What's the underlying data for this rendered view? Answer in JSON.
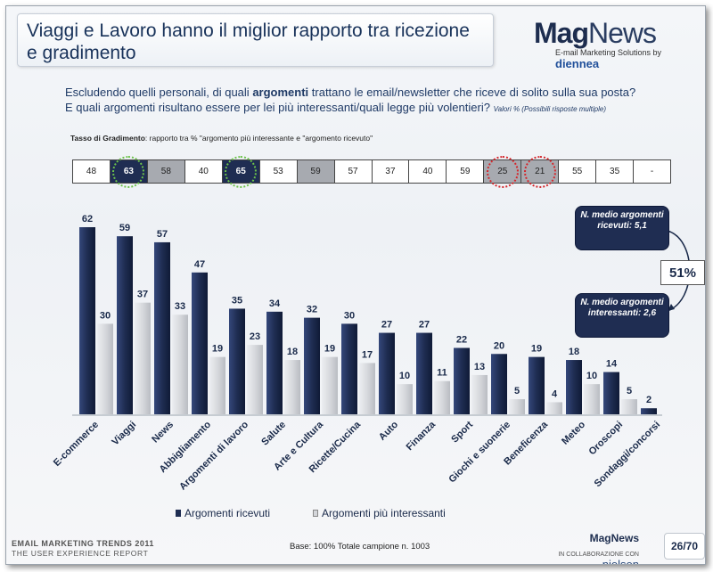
{
  "title": "Viaggi e Lavoro hanno il miglior rapporto tra ricezione e gradimento",
  "logo": {
    "main_bold": "Mag",
    "main_light": "News",
    "sub": "E-mail Marketing Solutions by",
    "sub_brand": "diennea"
  },
  "question": {
    "line1_pre": "Escludendo quelli personali, di quali ",
    "line1_bold": "argomenti",
    "line1_post": " trattano le email/newsletter che riceve di solito sulla sua posta?",
    "line2": "E quali argomenti risultano essere per lei più interessanti/quali legge più volentieri?",
    "line2_small": "Valori % (Possibili risposte multiple)"
  },
  "tasso": {
    "label_bold": "Tasso di Gradimento",
    "label_rest": ": rapporto tra % \"argomento più interessante e \"argomento ricevuto\""
  },
  "rates": [
    {
      "v": "48",
      "style": ""
    },
    {
      "v": "63",
      "style": "dark",
      "ring": "green"
    },
    {
      "v": "58",
      "style": "grey"
    },
    {
      "v": "40",
      "style": ""
    },
    {
      "v": "65",
      "style": "dark",
      "ring": "green"
    },
    {
      "v": "53",
      "style": ""
    },
    {
      "v": "59",
      "style": "grey"
    },
    {
      "v": "57",
      "style": ""
    },
    {
      "v": "37",
      "style": ""
    },
    {
      "v": "40",
      "style": ""
    },
    {
      "v": "59",
      "style": ""
    },
    {
      "v": "25",
      "style": "grey",
      "ring": "red"
    },
    {
      "v": "21",
      "style": "grey",
      "ring": "red"
    },
    {
      "v": "55",
      "style": ""
    },
    {
      "v": "35",
      "style": ""
    },
    {
      "v": "-",
      "style": ""
    }
  ],
  "chart_data": {
    "type": "bar",
    "categories": [
      "E-commerce",
      "Viaggi",
      "News",
      "Abbigliamento",
      "Argomenti di lavoro",
      "Salute",
      "Arte e Cultura",
      "Ricette/Cucina",
      "Auto",
      "Finanza",
      "Sport",
      "Giochi e suonerie",
      "Beneficenza",
      "Meteo",
      "Oroscopi",
      "Sondaggi/concorsi"
    ],
    "series": [
      {
        "name": "Argomenti ricevuti",
        "values": [
          62,
          59,
          57,
          47,
          35,
          34,
          32,
          30,
          27,
          27,
          22,
          20,
          19,
          18,
          14,
          2
        ],
        "color": "#1f2d52"
      },
      {
        "name": "Argomenti più interessanti",
        "values": [
          30,
          37,
          33,
          19,
          23,
          18,
          19,
          17,
          10,
          11,
          13,
          5,
          4,
          10,
          5,
          null
        ],
        "color": "#d4d6da"
      }
    ],
    "ylim": [
      0,
      70
    ],
    "grid": false,
    "legend": "bottom"
  },
  "callouts": {
    "received": "N. medio argomenti ricevuti: 5,1",
    "interesting": "N. medio argomenti interessanti: 2,6",
    "ratio": "51%"
  },
  "legend": {
    "received": "Argomenti ricevuti",
    "interesting": "Argomenti più interessanti"
  },
  "base": "Base: 100% Totale campione n. 1003",
  "footer": {
    "line1": "EMAIL MARKETING TRENDS 2011",
    "line2": "THE USER EXPERIENCE REPORT",
    "mini_logo": "MagNews",
    "nielsen_pre": "IN COLLABORAZIONE CON",
    "nielsen": "nielsen",
    "page": "26/70"
  }
}
